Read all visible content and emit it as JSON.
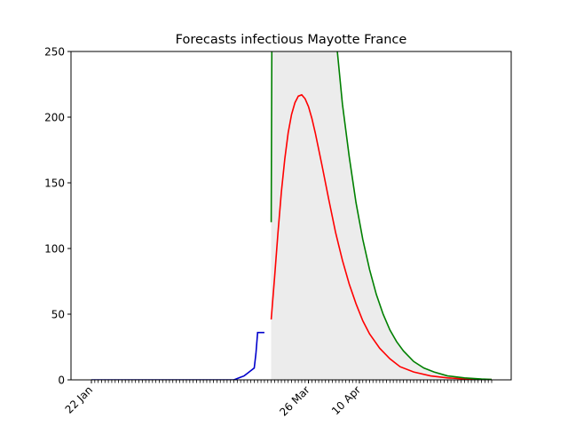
{
  "chart_data": {
    "type": "line",
    "title": "Forecasts infectious Mayotte France",
    "xlabel": "",
    "ylabel": "",
    "ylim": [
      0,
      250
    ],
    "x_start_day": 0,
    "x_end_day": 118,
    "y_ticks": [
      0,
      50,
      100,
      150,
      200,
      250
    ],
    "x_ticks": [
      {
        "label": "22 Jan",
        "day": 0
      },
      {
        "label": "26 Mar",
        "day": 64
      },
      {
        "label": "10 Apr",
        "day": 79
      }
    ],
    "grid": false,
    "legend": "none",
    "series": [
      {
        "color": "#0000cc",
        "points": [
          [
            0,
            0
          ],
          [
            10,
            0
          ],
          [
            20,
            0
          ],
          [
            30,
            0
          ],
          [
            38,
            0
          ],
          [
            40,
            0
          ],
          [
            41,
            0
          ],
          [
            42,
            0
          ],
          [
            43,
            1
          ],
          [
            44,
            2
          ],
          [
            45,
            3
          ],
          [
            46,
            5
          ],
          [
            47,
            7
          ],
          [
            48,
            9
          ],
          [
            48.5,
            20
          ],
          [
            49,
            36
          ],
          [
            51,
            36
          ]
        ]
      },
      {
        "color": "#ff0000",
        "points": [
          [
            53,
            46
          ],
          [
            54,
            78
          ],
          [
            55,
            112
          ],
          [
            56,
            143
          ],
          [
            57,
            168
          ],
          [
            58,
            188
          ],
          [
            59,
            202
          ],
          [
            60,
            211
          ],
          [
            61,
            216
          ],
          [
            62,
            217
          ],
          [
            63,
            214
          ],
          [
            64,
            208
          ],
          [
            65,
            199
          ],
          [
            66,
            188
          ],
          [
            68,
            163
          ],
          [
            70,
            137
          ],
          [
            72,
            112
          ],
          [
            74,
            91
          ],
          [
            76,
            73
          ],
          [
            78,
            58
          ],
          [
            80,
            45
          ],
          [
            82,
            35
          ],
          [
            85,
            24
          ],
          [
            88,
            16
          ],
          [
            91,
            10
          ],
          [
            95,
            6
          ],
          [
            100,
            3
          ],
          [
            105,
            1.5
          ],
          [
            110,
            0.7
          ],
          [
            115,
            0.3
          ],
          [
            118,
            0.2
          ]
        ]
      },
      {
        "color": "#008000",
        "points": [
          [
            53,
            120
          ],
          [
            53.2,
            260
          ],
          [
            72,
            260
          ],
          [
            72.5,
            250
          ],
          [
            74,
            210
          ],
          [
            76,
            170
          ],
          [
            78,
            135
          ],
          [
            80,
            107
          ],
          [
            82,
            84
          ],
          [
            84,
            65
          ],
          [
            86,
            50
          ],
          [
            88,
            38
          ],
          [
            90,
            29
          ],
          [
            92,
            22
          ],
          [
            95,
            14
          ],
          [
            98,
            9
          ],
          [
            101,
            6
          ],
          [
            105,
            3
          ],
          [
            110,
            1.5
          ],
          [
            115,
            0.6
          ],
          [
            118,
            0.3
          ]
        ]
      }
    ],
    "band": {
      "color": "#ececec",
      "upper": [
        [
          53,
          260
        ],
        [
          72,
          260
        ],
        [
          72.5,
          250
        ],
        [
          74,
          210
        ],
        [
          76,
          170
        ],
        [
          78,
          135
        ],
        [
          80,
          107
        ],
        [
          82,
          84
        ],
        [
          84,
          65
        ],
        [
          86,
          50
        ],
        [
          88,
          38
        ],
        [
          90,
          29
        ],
        [
          92,
          22
        ],
        [
          95,
          14
        ],
        [
          98,
          9
        ],
        [
          101,
          6
        ],
        [
          105,
          3
        ],
        [
          110,
          1.5
        ],
        [
          115,
          0.6
        ],
        [
          118,
          0.3
        ]
      ],
      "lower": [
        [
          53,
          0
        ],
        [
          118,
          0
        ]
      ]
    }
  }
}
